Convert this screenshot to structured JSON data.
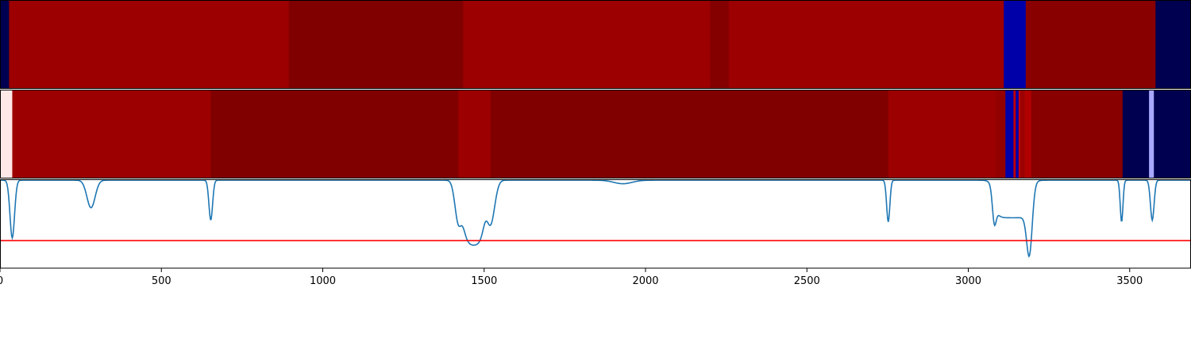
{
  "chart_data": [
    {
      "type": "heatmap",
      "panel": "top",
      "x_range": [
        0,
        3690
      ],
      "segments": [
        {
          "x0": 0,
          "x1": 28,
          "color": "#000050"
        },
        {
          "x0": 28,
          "x1": 895,
          "color": "#9c0000"
        },
        {
          "x0": 895,
          "x1": 1435,
          "color": "#800000"
        },
        {
          "x0": 1435,
          "x1": 2200,
          "color": "#9c0000"
        },
        {
          "x0": 2200,
          "x1": 2258,
          "color": "#840000"
        },
        {
          "x0": 2258,
          "x1": 3110,
          "color": "#9c0000"
        },
        {
          "x0": 3110,
          "x1": 3178,
          "color": "#0000a8"
        },
        {
          "x0": 3178,
          "x1": 3580,
          "color": "#880000"
        },
        {
          "x0": 3580,
          "x1": 3690,
          "color": "#000050"
        }
      ]
    },
    {
      "type": "heatmap",
      "panel": "middle",
      "x_range": [
        0,
        3690
      ],
      "segments": [
        {
          "x0": 0,
          "x1": 38,
          "color": "#ffe8e8"
        },
        {
          "x0": 38,
          "x1": 653,
          "color": "#9c0000"
        },
        {
          "x0": 653,
          "x1": 1420,
          "color": "#800000"
        },
        {
          "x0": 1420,
          "x1": 1520,
          "color": "#9c0000"
        },
        {
          "x0": 1520,
          "x1": 2752,
          "color": "#800000"
        },
        {
          "x0": 2752,
          "x1": 3085,
          "color": "#9c0000"
        },
        {
          "x0": 3085,
          "x1": 3115,
          "color": "#920000"
        },
        {
          "x0": 3115,
          "x1": 3140,
          "color": "#0000a8"
        },
        {
          "x0": 3140,
          "x1": 3147,
          "color": "#c00000"
        },
        {
          "x0": 3147,
          "x1": 3156,
          "color": "#0000a8"
        },
        {
          "x0": 3156,
          "x1": 3160,
          "color": "#d00000"
        },
        {
          "x0": 3160,
          "x1": 3175,
          "color": "#9c0000"
        },
        {
          "x0": 3175,
          "x1": 3195,
          "color": "#b00000"
        },
        {
          "x0": 3195,
          "x1": 3478,
          "color": "#880000"
        },
        {
          "x0": 3478,
          "x1": 3560,
          "color": "#000050"
        },
        {
          "x0": 3560,
          "x1": 3575,
          "color": "#a8a8ff"
        },
        {
          "x0": 3575,
          "x1": 3690,
          "color": "#000050"
        }
      ]
    },
    {
      "type": "line",
      "panel": "bottom",
      "xlim": [
        0,
        3690
      ],
      "ylim": [
        0,
        1
      ],
      "xticks": [
        "0",
        "500",
        "1000",
        "1500",
        "2000",
        "2500",
        "3000",
        "3500"
      ],
      "xtick_values": [
        0,
        500,
        1000,
        1500,
        2000,
        2500,
        3000,
        3500
      ],
      "series": [
        {
          "color": "#1f77b4",
          "baseline": 0.99,
          "dips": [
            {
              "x": 38,
              "width": 10,
              "depth": 0.65
            },
            {
              "x": 282,
              "width": 18,
              "depth": 0.31
            },
            {
              "x": 653,
              "width": 8,
              "depth": 0.45
            },
            {
              "x": 1420,
              "width": 15,
              "depth": 0.45
            },
            {
              "x": 1520,
              "width": 18,
              "depth": 0.48
            },
            {
              "x": 1930,
              "width": 40,
              "depth": 0.04
            },
            {
              "x": 2752,
              "width": 7,
              "depth": 0.47
            },
            {
              "x": 3080,
              "width": 8,
              "depth": 0.28
            },
            {
              "x": 3190,
              "width": 12,
              "depth": 0.55
            },
            {
              "x": 3475,
              "width": 6,
              "depth": 0.47
            },
            {
              "x": 3570,
              "width": 8,
              "depth": 0.45
            }
          ],
          "plateaus": [
            {
              "x0": 1435,
              "x1": 1500,
              "level": 0.17
            },
            {
              "x0": 3080,
              "x1": 3195,
              "level": 0.52
            }
          ]
        },
        {
          "color": "#ff0000",
          "type": "hline",
          "y": 0.31
        }
      ]
    }
  ]
}
